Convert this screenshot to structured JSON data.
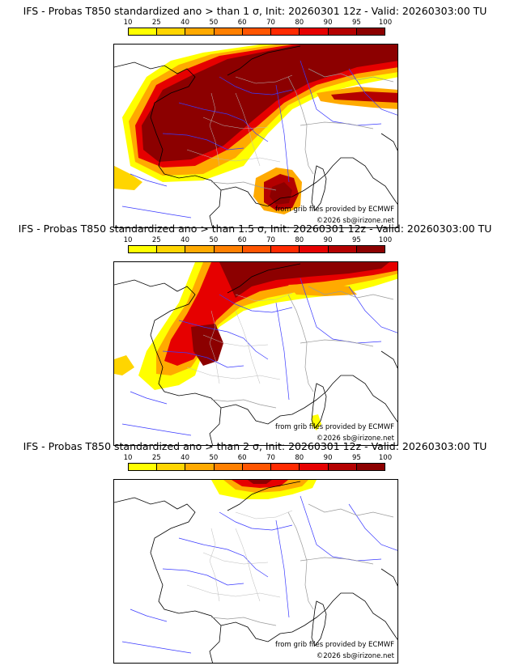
{
  "legend": {
    "labels": [
      "10",
      "25",
      "40",
      "50",
      "60",
      "70",
      "80",
      "90",
      "95",
      "100"
    ],
    "colors": [
      "#ffff00",
      "#ffd500",
      "#ffaa00",
      "#ff8000",
      "#ff5500",
      "#ff2a00",
      "#e60000",
      "#b40000",
      "#8c0000"
    ]
  },
  "credits": {
    "source": "from grib files provided by ECMWF",
    "copyright": "©2026 sb@irizone.net"
  },
  "panels": [
    {
      "title": "IFS - Probas T850  standardized ano > than 1 σ, Init: 20260301 12z - Valid: 20260303:00 TU"
    },
    {
      "title": "IFS - Probas T850  standardized ano > than 1.5 σ, Init: 20260301 12z - Valid: 20260303:00 TU"
    },
    {
      "title": "IFS - Probas T850  standardized ano > than 2 σ, Init: 20260301 12z - Valid: 20260303:00 TU"
    }
  ]
}
